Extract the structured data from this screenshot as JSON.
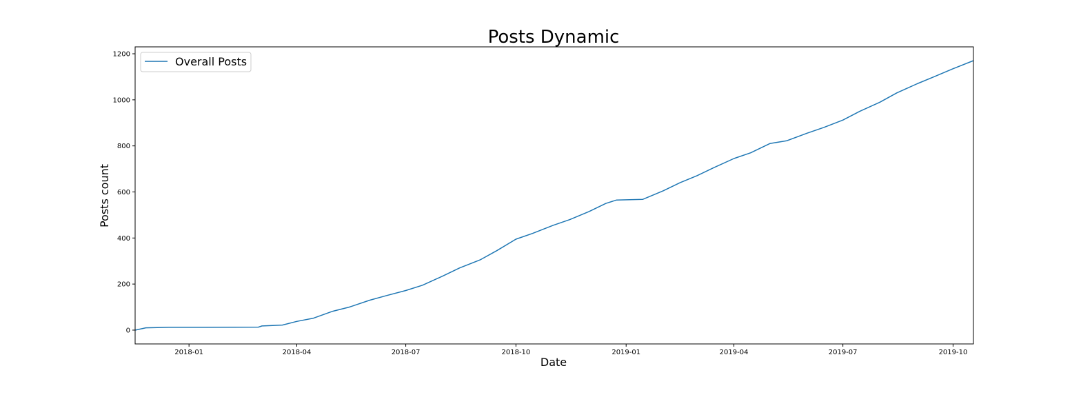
{
  "chart_data": {
    "type": "line",
    "title": "Posts Dynamic",
    "xlabel": "Date",
    "ylabel": "Posts count",
    "x_type": "date",
    "xlim": [
      "2017-11-17",
      "2019-10-18"
    ],
    "ylim": [
      -60,
      1230
    ],
    "x_ticks": [
      {
        "value": "2018-01-01",
        "label": "2018-01"
      },
      {
        "value": "2018-04-01",
        "label": "2018-04"
      },
      {
        "value": "2018-07-01",
        "label": "2018-07"
      },
      {
        "value": "2018-10-01",
        "label": "2018-10"
      },
      {
        "value": "2019-01-01",
        "label": "2019-01"
      },
      {
        "value": "2019-04-01",
        "label": "2019-04"
      },
      {
        "value": "2019-07-01",
        "label": "2019-07"
      },
      {
        "value": "2019-10-01",
        "label": "2019-10"
      }
    ],
    "y_ticks": [
      0,
      200,
      400,
      600,
      800,
      1000,
      1200
    ],
    "grid": false,
    "legend": {
      "position": "top-left"
    },
    "color": "#1f77b4",
    "series": [
      {
        "name": "Overall Posts",
        "points": [
          [
            "2017-11-17",
            0
          ],
          [
            "2017-11-26",
            10
          ],
          [
            "2017-12-15",
            12
          ],
          [
            "2018-01-15",
            12
          ],
          [
            "2018-02-28",
            13
          ],
          [
            "2018-03-03",
            18
          ],
          [
            "2018-03-20",
            22
          ],
          [
            "2018-04-01",
            38
          ],
          [
            "2018-04-15",
            52
          ],
          [
            "2018-05-01",
            82
          ],
          [
            "2018-05-15",
            100
          ],
          [
            "2018-06-01",
            130
          ],
          [
            "2018-06-15",
            150
          ],
          [
            "2018-07-01",
            172
          ],
          [
            "2018-07-15",
            195
          ],
          [
            "2018-08-01",
            235
          ],
          [
            "2018-08-15",
            270
          ],
          [
            "2018-09-01",
            305
          ],
          [
            "2018-09-15",
            345
          ],
          [
            "2018-10-01",
            395
          ],
          [
            "2018-10-15",
            420
          ],
          [
            "2018-11-01",
            455
          ],
          [
            "2018-11-15",
            480
          ],
          [
            "2018-12-01",
            515
          ],
          [
            "2018-12-15",
            550
          ],
          [
            "2018-12-24",
            565
          ],
          [
            "2019-01-15",
            568
          ],
          [
            "2019-02-01",
            605
          ],
          [
            "2019-02-15",
            640
          ],
          [
            "2019-03-01",
            670
          ],
          [
            "2019-03-15",
            705
          ],
          [
            "2019-04-01",
            745
          ],
          [
            "2019-04-15",
            770
          ],
          [
            "2019-05-01",
            810
          ],
          [
            "2019-05-15",
            822
          ],
          [
            "2019-06-01",
            855
          ],
          [
            "2019-06-15",
            880
          ],
          [
            "2019-07-01",
            912
          ],
          [
            "2019-07-15",
            950
          ],
          [
            "2019-08-01",
            990
          ],
          [
            "2019-08-15",
            1030
          ],
          [
            "2019-09-01",
            1070
          ],
          [
            "2019-09-15",
            1100
          ],
          [
            "2019-10-01",
            1135
          ],
          [
            "2019-10-18",
            1170
          ]
        ]
      }
    ]
  }
}
